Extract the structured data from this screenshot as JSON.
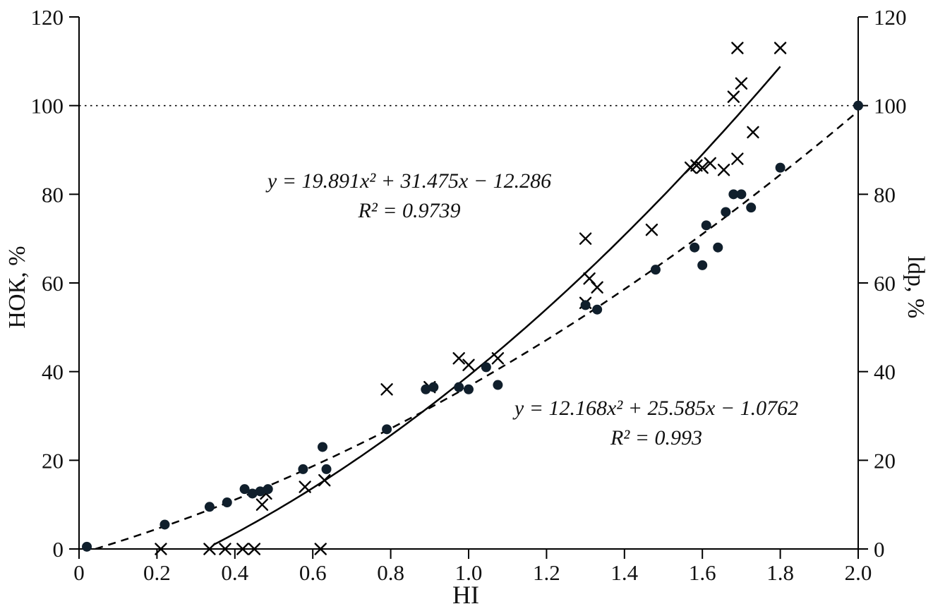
{
  "chart_data": {
    "type": "scatter",
    "title": "",
    "xlabel": "HI",
    "ylabel_left": "НОК, %",
    "ylabel_right": "ldp, %",
    "xlim": [
      0,
      2.0
    ],
    "ylim": [
      0,
      120
    ],
    "x_tick_labels": [
      "0",
      "0.2",
      "0.4",
      "0.6",
      "0.8",
      "1.0",
      "1.2",
      "1.4",
      "1.6",
      "1.8",
      "2.0"
    ],
    "y_tick_labels": [
      "0",
      "20",
      "40",
      "60",
      "80",
      "100",
      "120"
    ],
    "grid": false,
    "reference_line": {
      "y": 100,
      "style": "dotted"
    },
    "colors": {
      "dots": "#101f2c",
      "crosses": "#000000",
      "axis": "#000000"
    },
    "series": [
      {
        "name": "crosses",
        "marker": "x",
        "trend": {
          "type": "quadratic",
          "a": 19.891,
          "b": 31.475,
          "c": -12.286,
          "style": "solid",
          "x_range": [
            0.345,
            1.8
          ]
        },
        "points": [
          [
            0.21,
            0
          ],
          [
            0.335,
            0
          ],
          [
            0.375,
            0
          ],
          [
            0.42,
            0
          ],
          [
            0.45,
            0
          ],
          [
            0.62,
            0
          ],
          [
            0.47,
            10
          ],
          [
            0.48,
            12.5
          ],
          [
            0.58,
            14
          ],
          [
            0.63,
            15.5
          ],
          [
            0.79,
            36
          ],
          [
            0.9,
            36.5
          ],
          [
            0.975,
            43
          ],
          [
            1.0,
            41.5
          ],
          [
            1.075,
            43
          ],
          [
            1.3,
            70
          ],
          [
            1.31,
            61
          ],
          [
            1.33,
            59
          ],
          [
            1.3,
            55.5
          ],
          [
            1.47,
            72
          ],
          [
            1.57,
            86
          ],
          [
            1.585,
            86.5
          ],
          [
            1.6,
            86
          ],
          [
            1.62,
            87
          ],
          [
            1.655,
            85.5
          ],
          [
            1.69,
            88
          ],
          [
            1.68,
            102
          ],
          [
            1.7,
            105
          ],
          [
            1.69,
            113
          ],
          [
            1.73,
            94
          ],
          [
            1.8,
            113
          ]
        ]
      },
      {
        "name": "dots",
        "marker": "circle",
        "trend": {
          "type": "quadratic",
          "a": 12.168,
          "b": 25.585,
          "c": -1.0762,
          "style": "dashed",
          "x_range": [
            0.042,
            2.0
          ]
        },
        "points": [
          [
            0.02,
            0.5
          ],
          [
            0.22,
            5.5
          ],
          [
            0.335,
            9.5
          ],
          [
            0.38,
            10.5
          ],
          [
            0.425,
            13.5
          ],
          [
            0.445,
            12.5
          ],
          [
            0.465,
            13
          ],
          [
            0.485,
            13.5
          ],
          [
            0.575,
            18
          ],
          [
            0.625,
            23
          ],
          [
            0.635,
            18
          ],
          [
            0.79,
            27
          ],
          [
            0.89,
            36
          ],
          [
            0.91,
            36.5
          ],
          [
            0.975,
            36.5
          ],
          [
            1.0,
            36
          ],
          [
            1.045,
            41
          ],
          [
            1.075,
            37
          ],
          [
            1.3,
            55
          ],
          [
            1.33,
            54
          ],
          [
            1.48,
            63
          ],
          [
            1.58,
            68
          ],
          [
            1.6,
            64
          ],
          [
            1.61,
            73
          ],
          [
            1.64,
            68
          ],
          [
            1.66,
            76
          ],
          [
            1.68,
            80
          ],
          [
            1.7,
            80
          ],
          [
            1.725,
            77
          ],
          [
            1.8,
            86
          ],
          [
            2.0,
            100
          ]
        ]
      }
    ]
  },
  "annotations": {
    "eq1": {
      "line1": "y = 19.891x² + 31.475x − 12.286",
      "line2": "R² = 0.9739"
    },
    "eq2": {
      "line1": "y = 12.168x² + 25.585x − 1.0762",
      "line2": "R² = 0.993"
    }
  }
}
